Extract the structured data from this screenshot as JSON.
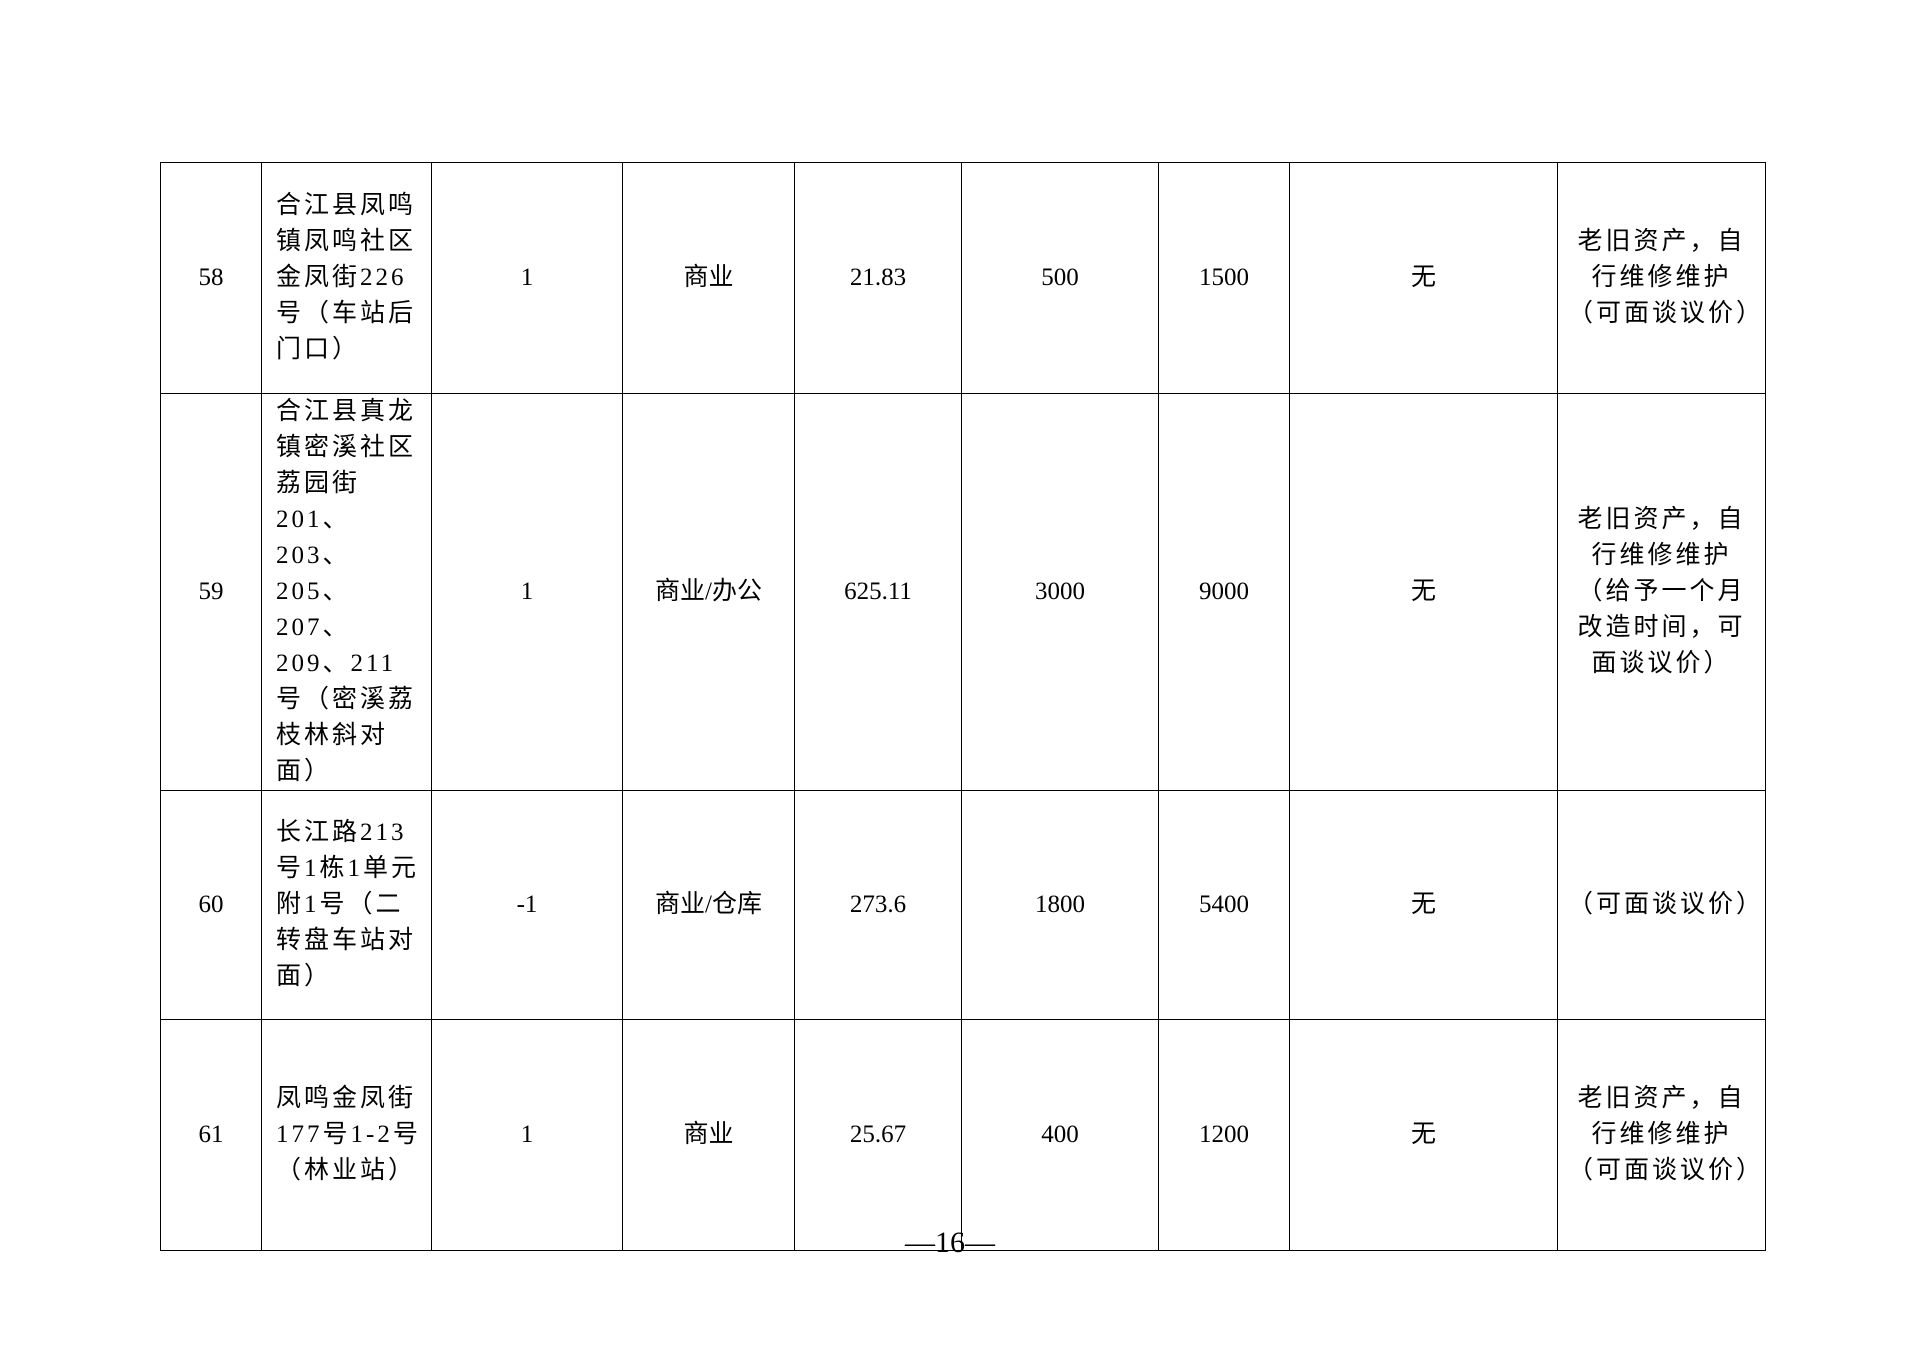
{
  "rows": [
    {
      "no": "58",
      "address": "合江县凤鸣镇凤鸣社区金凤街226号（车站后门口）",
      "floor": "1",
      "use": "商业",
      "area": "21.83",
      "rent": "500",
      "deposit": "1500",
      "encumbrance": "无",
      "note": "老旧资产，自行维修维护（可面谈议价）"
    },
    {
      "no": "59",
      "address": "合江县真龙镇密溪社区荔园街201、203、205、207、209、211号（密溪荔枝林斜对面）",
      "floor": "1",
      "use": "商业/办公",
      "area": "625.11",
      "rent": "3000",
      "deposit": "9000",
      "encumbrance": "无",
      "note": "老旧资产，自行维修维护（给予一个月改造时间，可面谈议价）"
    },
    {
      "no": "60",
      "address": "长江路213号1栋1单元附1号（二转盘车站对面）",
      "floor": "-1",
      "use": "商业/仓库",
      "area": "273.6",
      "rent": "1800",
      "deposit": "5400",
      "encumbrance": "无",
      "note": "（可面谈议价）"
    },
    {
      "no": "61",
      "address": "凤鸣金凤街177号1-2号（林业站）",
      "floor": "1",
      "use": "商业",
      "area": "25.67",
      "rent": "400",
      "deposit": "1200",
      "encumbrance": "无",
      "note": "老旧资产，自行维修维护（可面谈议价）"
    }
  ],
  "page_number": "—16—"
}
